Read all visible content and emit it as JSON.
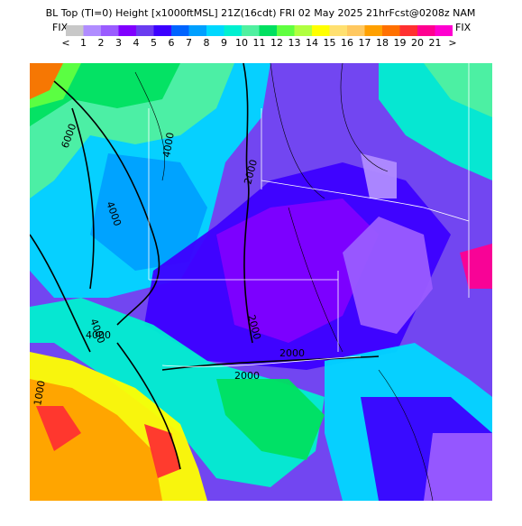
{
  "header": {
    "title": "BL Top (TI=0) Height [x1000ftMSL] 21Z(16cdt) FRI 02 May 2025 21hrFcst@0208z NAM"
  },
  "colorbar": {
    "left_label": "FIX",
    "right_label": "FIX",
    "colors": [
      "#c8c8c8",
      "#b08cff",
      "#9a5cff",
      "#8000ff",
      "#6a3cf0",
      "#3c00ff",
      "#0064ff",
      "#00a0ff",
      "#00d8ff",
      "#00f0d0",
      "#50f0a0",
      "#00e060",
      "#60ff40",
      "#b0ff40",
      "#ffff00",
      "#ffe070",
      "#ffc860",
      "#ffa000",
      "#ff7000",
      "#ff3030",
      "#ff0090",
      "#ff00d0"
    ],
    "labels": [
      "<",
      "1",
      "2",
      "3",
      "4",
      "5",
      "6",
      "7",
      "8",
      "9",
      "10",
      "11",
      "12",
      "13",
      "14",
      "15",
      "16",
      "17",
      "18",
      "19",
      "20",
      "21",
      ">"
    ]
  },
  "map": {
    "contour_labels": [
      "6000",
      "4000",
      "4000",
      "4000",
      "4000",
      "2000",
      "2000",
      "2000",
      "2000",
      "1000"
    ]
  }
}
